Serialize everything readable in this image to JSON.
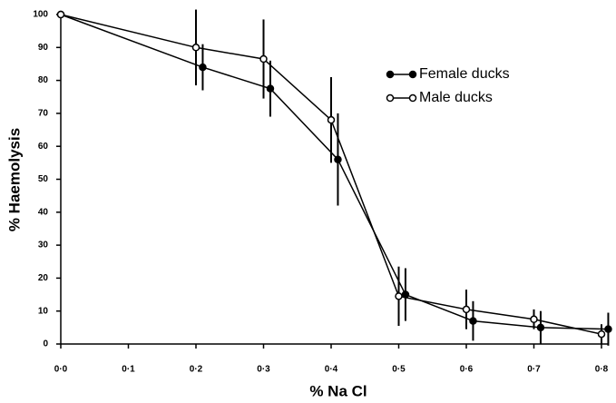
{
  "chart_data": {
    "type": "line",
    "ylabel": "% Haemolysis",
    "xlabel": "% Na Cl",
    "xlim": [
      0,
      0.8
    ],
    "ylim": [
      0,
      100
    ],
    "xticks": [
      {
        "value": 0,
        "label": "0·0"
      },
      {
        "value": 0.1,
        "label": "0·1"
      },
      {
        "value": 0.2,
        "label": "0·2"
      },
      {
        "value": 0.3,
        "label": "0·3"
      },
      {
        "value": 0.4,
        "label": "0·4"
      },
      {
        "value": 0.5,
        "label": "0·5"
      },
      {
        "value": 0.6,
        "label": "0·6"
      },
      {
        "value": 0.7,
        "label": "0·7"
      },
      {
        "value": 0.8,
        "label": "0·8"
      }
    ],
    "yticks": [
      0,
      10,
      20,
      30,
      40,
      50,
      60,
      70,
      80,
      90,
      100
    ],
    "legend": "upper right",
    "series": [
      {
        "name": "Female ducks",
        "color": "#000000",
        "marker": "filled",
        "x": [
          0,
          0.21,
          0.31,
          0.41,
          0.51,
          0.61,
          0.71,
          0.81
        ],
        "values": [
          100,
          84,
          77.5,
          56,
          15,
          7,
          5,
          4.5
        ],
        "errors": [
          null,
          7,
          8.5,
          14,
          8,
          6,
          5,
          5
        ]
      },
      {
        "name": "Male ducks",
        "color": "#000000",
        "marker": "open",
        "x": [
          0,
          0.2,
          0.3,
          0.4,
          0.5,
          0.6,
          0.7,
          0.8
        ],
        "values": [
          100,
          90,
          86.5,
          68,
          14.5,
          10.5,
          7.5,
          3
        ],
        "errors": [
          null,
          11.5,
          12,
          13,
          9,
          6,
          3,
          3
        ]
      }
    ]
  }
}
